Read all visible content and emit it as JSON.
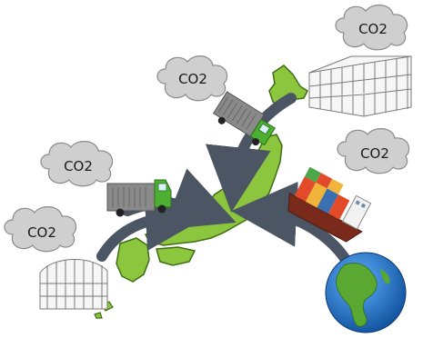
{
  "clouds": [
    {
      "id": "cloud-truck-north",
      "label": "CO2"
    },
    {
      "id": "cloud-greenhouse-northeast",
      "label": "CO2"
    },
    {
      "id": "cloud-ship",
      "label": "CO2"
    },
    {
      "id": "cloud-truck-west",
      "label": "CO2"
    },
    {
      "id": "cloud-greenhouse-southwest",
      "label": "CO2"
    }
  ],
  "colors": {
    "cloud_fill": "#cfcfcf",
    "cloud_stroke": "#8a8a8a",
    "arrow": "#4b5563",
    "land": "#8cc63f",
    "land_stroke": "#3f6e12",
    "truck_green": "#4caf32",
    "truck_cargo": "#8a8a8a",
    "ocean": "#1e73be",
    "continent": "#5aa832",
    "ship_hull": "#7a2a1a"
  }
}
